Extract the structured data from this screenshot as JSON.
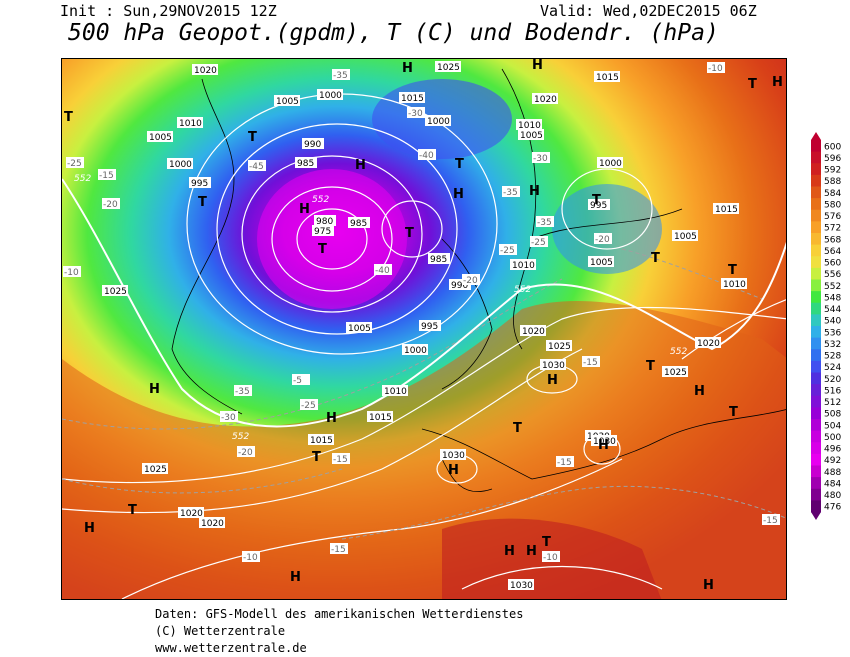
{
  "header": {
    "init": "Init : Sun,29NOV2015 12Z",
    "valid": "Valid: Wed,02DEC2015 06Z",
    "title": "500 hPa Geopot.(gpdm), T (C) und Bodendr. (hPa)"
  },
  "legend": {
    "values": [
      "600",
      "596",
      "592",
      "588",
      "584",
      "580",
      "576",
      "572",
      "568",
      "564",
      "560",
      "556",
      "552",
      "548",
      "544",
      "540",
      "536",
      "532",
      "528",
      "524",
      "520",
      "516",
      "512",
      "508",
      "504",
      "500",
      "496",
      "492",
      "488",
      "484",
      "480",
      "476"
    ],
    "colors": [
      "#c00030",
      "#c8102a",
      "#d02020",
      "#d83a18",
      "#e05818",
      "#e87018",
      "#f08820",
      "#f8a028",
      "#f8b830",
      "#f8d038",
      "#f0e040",
      "#c8f040",
      "#88f040",
      "#40e840",
      "#30d880",
      "#30c8c0",
      "#30b0e8",
      "#3090f0",
      "#3070f0",
      "#4050f0",
      "#5030e0",
      "#6820d8",
      "#8010d8",
      "#9800d8",
      "#b000d8",
      "#c800e0",
      "#d800e8",
      "#e800f0",
      "#c800d0",
      "#a000b0",
      "#800090",
      "#600070"
    ]
  },
  "map": {
    "pressure_labels": [
      "1020",
      "1005",
      "1000",
      "1025",
      "1015",
      "1010",
      "1000",
      "1005",
      "1020",
      "1015",
      "1010",
      "1005",
      "1000",
      "995",
      "990",
      "985",
      "980",
      "975",
      "985",
      "990",
      "985",
      "995",
      "1000",
      "1005",
      "1010",
      "1015",
      "1020",
      "1025",
      "1030",
      "1030",
      "1030",
      "1025",
      "1020",
      "1015",
      "1010",
      "1005",
      "1000",
      "995",
      "1025",
      "1020",
      "1015",
      "1010",
      "1005",
      "1030",
      "1020",
      "1025",
      "1030"
    ],
    "temp_labels": [
      "-25",
      "-20",
      "-15",
      "-10",
      "-35",
      "-30",
      "-45",
      "-40",
      "-35",
      "-25",
      "-20",
      "-15",
      "-10",
      "-35",
      "-30",
      "-25",
      "-20",
      "-15",
      "-10",
      "-5",
      "-30",
      "-35",
      "-25",
      "-40",
      "-20",
      "-15",
      "-15",
      "-10",
      "-15"
    ],
    "gp_labels": [
      "552",
      "552",
      "552",
      "552",
      "552"
    ],
    "highs_label": "H",
    "lows_label": "T"
  },
  "footer": {
    "line1": "Daten: GFS-Modell des amerikanischen Wetterdienstes",
    "line2": "(C) Wetterzentrale",
    "line3": "www.wetterzentrale.de"
  }
}
